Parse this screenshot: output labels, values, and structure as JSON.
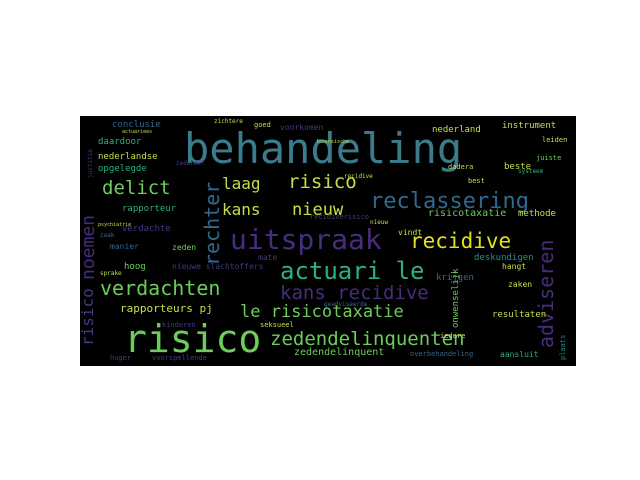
{
  "palette": {
    "background": "#000000",
    "teal": "#3b7c8c",
    "blue": "#31688e",
    "green": "#6ccd5a",
    "lightgreen": "#bfe04a",
    "yellow": "#e1e01b",
    "purple": "#472d7b",
    "violet": "#443a83",
    "mint": "#2cb17e",
    "aqua": "#21918c"
  },
  "words": [
    {
      "text": "behandeling"
    },
    {
      "text": "risico"
    },
    {
      "text": "uitspraak"
    },
    {
      "text": "actuari le"
    },
    {
      "text": "reclassering"
    },
    {
      "text": "zedendelinquenten"
    },
    {
      "text": "verdachten"
    },
    {
      "text": "recidive"
    },
    {
      "text": "kans recidive"
    },
    {
      "text": "delict"
    },
    {
      "text": "laag"
    },
    {
      "text": "risico"
    },
    {
      "text": "kans"
    },
    {
      "text": "nieuw"
    },
    {
      "text": "le risicotaxatie"
    },
    {
      "text": "rechter"
    },
    {
      "text": "adviseren"
    },
    {
      "text": "noemen"
    },
    {
      "text": "risico"
    },
    {
      "text": "rapporteurs pj"
    },
    {
      "text": "zedendelinquent"
    },
    {
      "text": "risicotaxatie"
    },
    {
      "text": "instrument"
    },
    {
      "text": "conclusie"
    },
    {
      "text": "daardoor"
    },
    {
      "text": "nederlandse"
    },
    {
      "text": "opgelegde"
    },
    {
      "text": "rapporteur"
    },
    {
      "text": "verdachte"
    },
    {
      "text": "manier"
    },
    {
      "text": "hoog"
    },
    {
      "text": "nieuwe slachtoffers"
    },
    {
      "text": "zeden"
    },
    {
      "text": "nederland"
    },
    {
      "text": "beste"
    },
    {
      "text": "methode"
    },
    {
      "text": "deskundigen"
    },
    {
      "text": "vindt"
    },
    {
      "text": "hangt"
    },
    {
      "text": "zaken"
    },
    {
      "text": "resultaten"
    },
    {
      "text": "kinderen"
    },
    {
      "text": "seksueel"
    },
    {
      "text": "aansluit"
    },
    {
      "text": "overbehandeling"
    },
    {
      "text": "voorkomen"
    },
    {
      "text": "goed"
    },
    {
      "text": "recidiverisico"
    },
    {
      "text": "dadera"
    },
    {
      "text": "krijgen"
    },
    {
      "text": "onwenselijk"
    },
    {
      "text": "hoger"
    },
    {
      "text": "voorspellende"
    },
    {
      "text": "zichtere"
    },
    {
      "text": "leiden"
    },
    {
      "text": "juiste"
    },
    {
      "text": "geadviseerde"
    },
    {
      "text": "actuariees"
    },
    {
      "text": "psychiatrie"
    },
    {
      "text": "mate"
    },
    {
      "text": "nieuw"
    },
    {
      "text": "zedendel"
    },
    {
      "text": "justitie"
    },
    {
      "text": "iedere"
    },
    {
      "text": "zaak"
    },
    {
      "text": "best"
    },
    {
      "text": "forensische"
    },
    {
      "text": "recidive"
    },
    {
      "text": "systeem"
    },
    {
      "text": "plaats"
    },
    {
      "text": "sprake"
    }
  ]
}
